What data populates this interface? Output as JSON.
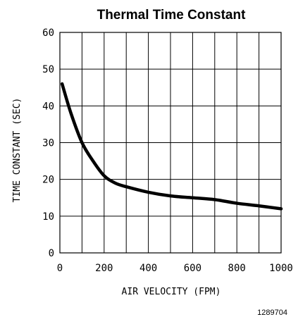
{
  "chart_data": {
    "type": "line",
    "title": "Thermal Time Constant",
    "xlabel": "AIR VELOCITY (FPM)",
    "ylabel": "TIME CONSTANT (SEC)",
    "xlim": [
      0,
      1000
    ],
    "ylim": [
      0,
      60
    ],
    "x_ticks": [
      "0",
      "200",
      "400",
      "600",
      "800",
      "1000"
    ],
    "y_ticks": [
      "0",
      "10",
      "20",
      "30",
      "40",
      "50",
      "60"
    ],
    "grid": true,
    "series": [
      {
        "x": [
          10,
          50,
          100,
          150,
          200,
          250,
          300,
          400,
          500,
          600,
          700,
          800,
          900,
          1000
        ],
        "y": [
          46,
          38,
          30,
          25,
          21,
          19,
          18,
          16.5,
          15.5,
          15,
          14.5,
          13.5,
          12.8,
          12
        ]
      }
    ]
  },
  "figure_id": "1289704"
}
